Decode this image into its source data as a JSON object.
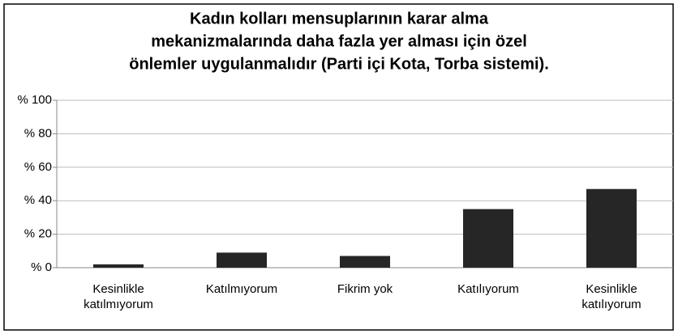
{
  "chart_data": {
    "type": "bar",
    "title": [
      "Kadın kolları mensuplarının karar alma",
      "mekanizmalarında daha fazla yer alması için özel",
      "önlemler uygulanmalıdır (Parti içi Kota, Torba sistemi)."
    ],
    "categories": [
      "Kesinlikle katılmıyorum",
      "Katılmıyorum",
      "Fikrim yok",
      "Katılıyorum",
      "Kesinlikle katılıyorum"
    ],
    "values": [
      2,
      9,
      7,
      35,
      47
    ],
    "color": "#262626",
    "ylim": [
      0,
      100
    ],
    "yticks": [
      {
        "value": 0,
        "label": "% 0"
      },
      {
        "value": 20,
        "label": "% 20"
      },
      {
        "value": 40,
        "label": "% 40"
      },
      {
        "value": 60,
        "label": "% 60"
      },
      {
        "value": 80,
        "label": "% 80"
      },
      {
        "value": 100,
        "label": "% 100"
      }
    ],
    "grid": true
  }
}
